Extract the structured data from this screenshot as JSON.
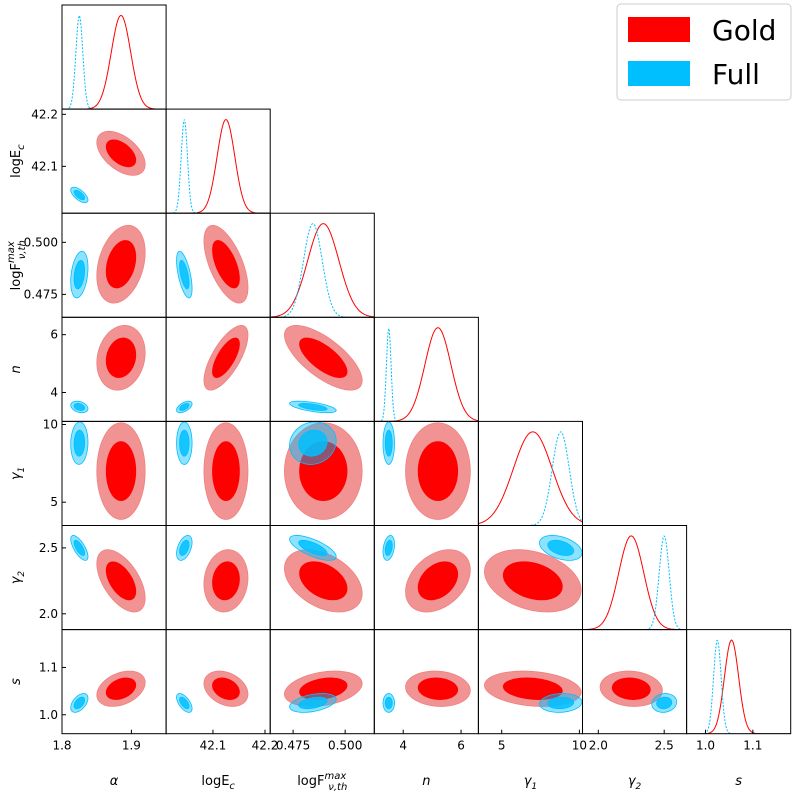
{
  "chart_data": {
    "type": "corner",
    "title": "",
    "colors": {
      "gold": "#ff0000",
      "full": "#00bfff",
      "gold_fill": "#f08080"
    },
    "legend": {
      "placement": "top-right",
      "entries": [
        {
          "name": "Gold",
          "color": "#ff0000"
        },
        {
          "name": "Full",
          "color": "#00bfff"
        }
      ]
    },
    "parameters": [
      {
        "key": "alpha",
        "label": "α",
        "range": [
          1.8,
          1.95
        ],
        "ticks": [
          1.8,
          1.9
        ],
        "tick_labels": [
          "1.8",
          "1.9"
        ]
      },
      {
        "key": "logEc",
        "label": "logE_c",
        "range": [
          42.01,
          42.21
        ],
        "ticks": [
          42.1,
          42.2
        ],
        "tick_labels": [
          "42.1",
          "42.2"
        ]
      },
      {
        "key": "logF",
        "label": "logF^max_ν,th",
        "range": [
          0.464,
          0.514
        ],
        "ticks": [
          0.475,
          0.5
        ],
        "tick_labels": [
          "0.475",
          "0.500"
        ]
      },
      {
        "key": "n",
        "label": "n",
        "range": [
          3.0,
          6.6
        ],
        "ticks": [
          4,
          6
        ],
        "tick_labels": [
          "4",
          "6"
        ]
      },
      {
        "key": "gamma1",
        "label": "γ1",
        "range": [
          3.5,
          10.2
        ],
        "ticks": [
          5,
          10
        ],
        "tick_labels": [
          "5",
          "10"
        ]
      },
      {
        "key": "gamma2",
        "label": "γ2",
        "range": [
          1.88,
          2.67
        ],
        "ticks": [
          2.0,
          2.5
        ],
        "tick_labels": [
          "2.0",
          "2.5"
        ]
      },
      {
        "key": "s",
        "label": "s",
        "range": [
          0.96,
          1.18
        ],
        "ticks": [
          1.0,
          1.1
        ],
        "tick_labels": [
          "1.0",
          "1.1"
        ]
      }
    ],
    "series": [
      {
        "name": "Gold",
        "means": {
          "alpha": 1.885,
          "logEc": 42.125,
          "logF": 0.4895,
          "n": 5.2,
          "gamma1": 7.0,
          "gamma2": 2.25,
          "s": 1.055
        },
        "sigmas": {
          "alpha": 0.014,
          "logEc": 0.017,
          "logF": 0.0075,
          "n": 0.45,
          "gamma1": 1.25,
          "gamma2": 0.095,
          "s": 0.015
        }
      },
      {
        "name": "Full",
        "means": {
          "alpha": 1.825,
          "logEc": 42.045,
          "logF": 0.4845,
          "n": 3.5,
          "gamma1": 8.8,
          "gamma2": 2.5,
          "s": 1.025
        },
        "sigmas": {
          "alpha": 0.005,
          "logEc": 0.006,
          "logF": 0.0045,
          "n": 0.08,
          "gamma1": 0.55,
          "gamma2": 0.038,
          "s": 0.008
        }
      }
    ],
    "correlations": {
      "Gold": {
        "logEc|alpha": -0.5,
        "logF|alpha": 0.3,
        "n|alpha": 0.15,
        "gamma1|alpha": 0.0,
        "gamma2|alpha": -0.55,
        "s|alpha": 0.35,
        "logF|logEc": -0.6,
        "n|logEc": 0.7,
        "gamma1|logEc": 0.0,
        "gamma2|logEc": 0.1,
        "s|logEc": -0.3,
        "n|logF": -0.7,
        "gamma1|logF": 0.0,
        "gamma2|logF": -0.4,
        "s|logF": 0.3,
        "gamma1|n": 0.0,
        "gamma2|n": 0.35,
        "s|n": -0.1,
        "gamma2|gamma1": -0.3,
        "s|gamma1": -0.2,
        "s|gamma2": -0.1
      },
      "Full": {
        "logEc|alpha": -0.65,
        "logF|alpha": 0.3,
        "n|alpha": -0.3,
        "gamma1|alpha": 0.05,
        "gamma2|alpha": -0.7,
        "s|alpha": 0.5,
        "logF|logEc": -0.6,
        "n|logEc": 0.55,
        "gamma1|logEc": 0.0,
        "gamma2|logEc": 0.45,
        "s|logEc": -0.6,
        "n|logF": -0.6,
        "gamma1|logF": 0.1,
        "gamma2|logF": -0.7,
        "s|logF": 0.4,
        "gamma1|n": 0.0,
        "gamma2|n": 0.3,
        "s|n": 0.0,
        "gamma2|gamma1": -0.4,
        "s|gamma1": 0.1,
        "s|gamma2": 0.1
      }
    },
    "contour_levels": [
      "1σ",
      "2σ"
    ]
  }
}
